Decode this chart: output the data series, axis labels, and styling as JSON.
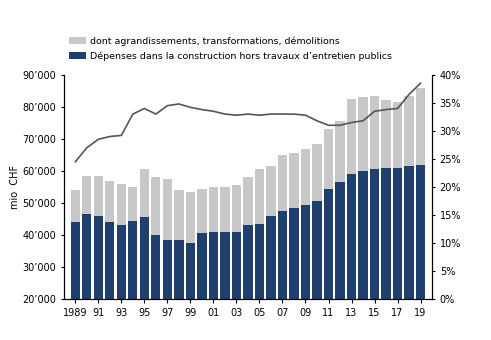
{
  "years": [
    1989,
    1990,
    1991,
    1992,
    1993,
    1994,
    1995,
    1996,
    1997,
    1998,
    1999,
    2000,
    2001,
    2002,
    2003,
    2004,
    2005,
    2006,
    2007,
    2008,
    2009,
    2010,
    2011,
    2012,
    2013,
    2014,
    2015,
    2016,
    2017,
    2018,
    2019
  ],
  "blue_bars": [
    44000,
    46500,
    46000,
    44000,
    43000,
    44500,
    45500,
    40000,
    38500,
    38500,
    37500,
    40500,
    41000,
    41000,
    41000,
    43000,
    43500,
    46000,
    47500,
    48500,
    49500,
    50500,
    54500,
    56500,
    59000,
    60000,
    60500,
    61000,
    61000,
    61500,
    62000
  ],
  "total_bars": [
    54000,
    58500,
    58500,
    57000,
    56000,
    55000,
    60500,
    58000,
    57500,
    54000,
    53500,
    54500,
    55000,
    55000,
    55500,
    58000,
    60500,
    61500,
    65000,
    65500,
    67000,
    68500,
    73000,
    75500,
    82500,
    83000,
    83500,
    82000,
    81500,
    83500,
    86000
  ],
  "line_pct": [
    0.245,
    0.27,
    0.285,
    0.29,
    0.292,
    0.33,
    0.34,
    0.33,
    0.345,
    0.348,
    0.342,
    0.338,
    0.335,
    0.33,
    0.328,
    0.33,
    0.328,
    0.33,
    0.33,
    0.33,
    0.328,
    0.318,
    0.31,
    0.31,
    0.315,
    0.318,
    0.335,
    0.338,
    0.34,
    0.365,
    0.385
  ],
  "bar_color_blue": "#1f3f6e",
  "bar_color_gray": "#c8c8c8",
  "line_color": "#555555",
  "legend_gray": "dont agrandissements, transformations, démolitions",
  "legend_blue": "Dépenses dans la construction hors travaux d’entretien publics",
  "ylabel_left": "mio  CHF",
  "ytick_vals_left": [
    20000,
    30000,
    40000,
    50000,
    60000,
    70000,
    80000,
    90000
  ],
  "ytick_labels_left": [
    "20’000",
    "30’000",
    "40’000",
    "50’000",
    "60’000",
    "70’000",
    "80’000",
    "90’000"
  ],
  "ylim_left": [
    20000,
    90000
  ],
  "ytick_vals_right": [
    0.0,
    0.05,
    0.1,
    0.15,
    0.2,
    0.25,
    0.3,
    0.35,
    0.4
  ],
  "ytick_labels_right": [
    "0%",
    "5%",
    "10%",
    "15%",
    "20%",
    "25%",
    "30%",
    "35%",
    "40%"
  ],
  "ylim_right": [
    0.0,
    0.4
  ],
  "xtick_years": [
    1989,
    1991,
    1993,
    1995,
    1997,
    1999,
    2001,
    2003,
    2005,
    2007,
    2009,
    2011,
    2013,
    2015,
    2017,
    2019
  ],
  "xtick_labels": [
    "1989",
    "91",
    "93",
    "95",
    "97",
    "99",
    "01",
    "03",
    "05",
    "07",
    "09",
    "11",
    "13",
    "15",
    "17",
    "19"
  ],
  "xlim": [
    1988.0,
    2020.0
  ],
  "bar_width": 0.8,
  "figsize": [
    4.91,
    3.4
  ],
  "dpi": 100
}
